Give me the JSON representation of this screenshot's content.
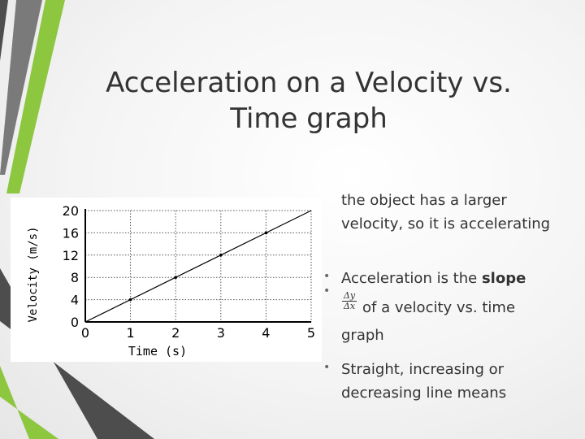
{
  "slide": {
    "title": "Acceleration on a Velocity vs. Time graph",
    "colors": {
      "accent_green": "#8dc63f",
      "stripe_dark": "#4d4d4d",
      "stripe_mid": "#7a7a7a",
      "text": "#333333"
    }
  },
  "bullets": {
    "item1_text": "the object has a larger velocity, so it is accelerating",
    "item2_prefix": "Acceleration is the ",
    "item2_bold": "slope",
    "item3_frac_num": "Δy",
    "item3_frac_den": "Δx",
    "item3_line1": "of a velocity vs. time",
    "item3_line2": "graph",
    "item4_text": "Straight, increasing or decreasing line means",
    "bullet_glyph": "•"
  },
  "chart_data": {
    "type": "line",
    "xlabel": "Time (s)",
    "ylabel": "Velocity (m/s)",
    "xlim": [
      0,
      5
    ],
    "ylim": [
      0,
      20
    ],
    "xticks": [
      0,
      1,
      2,
      3,
      4,
      5
    ],
    "yticks": [
      0,
      4,
      8,
      12,
      16,
      20
    ],
    "grid": "dotted",
    "series": [
      {
        "x": [
          0,
          5
        ],
        "y": [
          0,
          20
        ]
      }
    ],
    "marked_points": {
      "x": [
        1,
        2,
        3,
        4
      ],
      "y": [
        4,
        8,
        12,
        16
      ]
    }
  }
}
